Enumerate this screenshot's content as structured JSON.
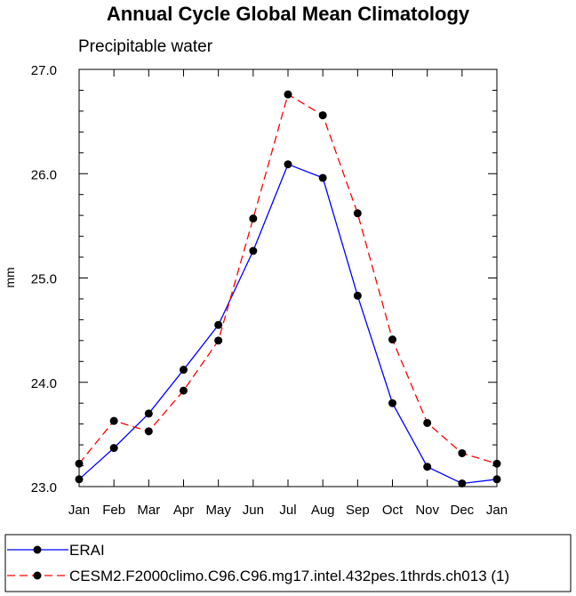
{
  "chart_data": {
    "type": "line",
    "title": "Annual Cycle Global Mean Climatology",
    "subtitle": "Precipitable water",
    "xlabel": "",
    "ylabel": "mm",
    "categories": [
      "Jan",
      "Feb",
      "Mar",
      "Apr",
      "May",
      "Jun",
      "Jul",
      "Aug",
      "Sep",
      "Oct",
      "Nov",
      "Dec",
      "Jan"
    ],
    "ylim": [
      23.0,
      27.0
    ],
    "yticks": [
      "23.0",
      "24.0",
      "25.0",
      "26.0",
      "27.0"
    ],
    "grid": false,
    "legend_position": "bottom",
    "series": [
      {
        "name": "ERAI",
        "color": "#0000ff",
        "line_style": "solid",
        "marker": "filled-circle",
        "values": [
          23.07,
          23.37,
          23.7,
          24.12,
          24.55,
          25.26,
          26.09,
          25.96,
          24.83,
          23.8,
          23.19,
          23.03,
          23.07
        ]
      },
      {
        "name": "CESM2.F2000climo.C96.C96.mg17.intel.432pes.1thrds.ch013 (1)",
        "color": "#ff0000",
        "line_style": "dashed",
        "marker": "filled-circle",
        "values": [
          23.22,
          23.63,
          23.53,
          23.92,
          24.4,
          25.57,
          26.76,
          26.56,
          25.62,
          24.41,
          23.61,
          23.32,
          23.22
        ]
      }
    ]
  }
}
